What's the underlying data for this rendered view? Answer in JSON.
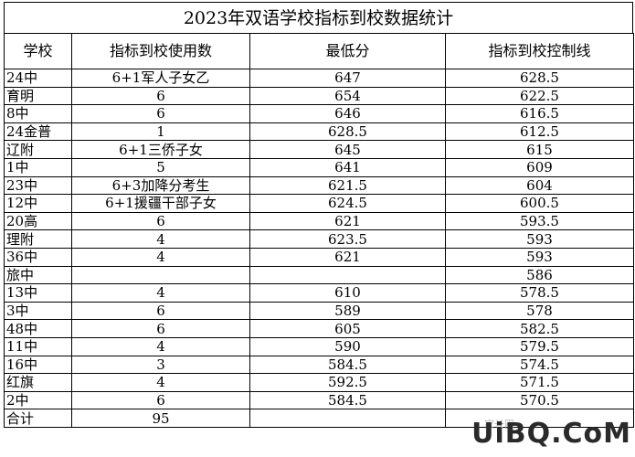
{
  "title": "2023年双语学校指标到校数据统计",
  "headers": [
    "学校",
    "指标到校使用数",
    "最低分",
    "指标到校控制线"
  ],
  "rows": [
    [
      "24中",
      "6+1军人子女乙",
      "647",
      "628.5"
    ],
    [
      "育明",
      "6",
      "654",
      "622.5"
    ],
    [
      "8中",
      "6",
      "646",
      "616.5"
    ],
    [
      "24金普",
      "1",
      "628.5",
      "612.5"
    ],
    [
      "辽附",
      "6+1三侨子女",
      "645",
      "615"
    ],
    [
      "1中",
      "5",
      "641",
      "609"
    ],
    [
      "23中",
      "6+3加降分考生",
      "621.5",
      "604"
    ],
    [
      "12中",
      "6+1援疆干部子女",
      "624.5",
      "600.5"
    ],
    [
      "20高",
      "6",
      "621",
      "593.5"
    ],
    [
      "理附",
      "4",
      "623.5",
      "593"
    ],
    [
      "36中",
      "4",
      "621",
      "593"
    ],
    [
      "旅中",
      "",
      "",
      "586"
    ],
    [
      "13中",
      "4",
      "610",
      "578.5"
    ],
    [
      "3中",
      "6",
      "589",
      "578"
    ],
    [
      "48中",
      "6",
      "605",
      "582.5"
    ],
    [
      "11中",
      "4",
      "590",
      "579.5"
    ],
    [
      "16中",
      "3",
      "584.5",
      "574.5"
    ],
    [
      "红旗",
      "4",
      "592.5",
      "571.5"
    ],
    [
      "2中",
      "6",
      "584.5",
      "570.5"
    ],
    [
      "合计",
      "95",
      "",
      ""
    ]
  ],
  "watermark": "家长圈",
  "logo": "UiBQ.CoM"
}
